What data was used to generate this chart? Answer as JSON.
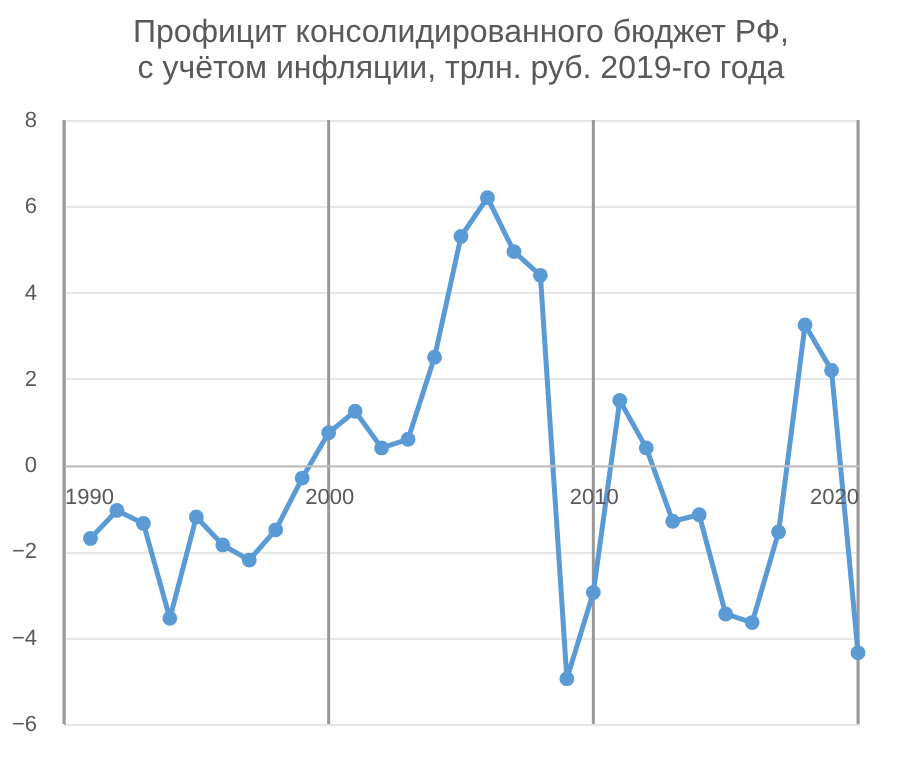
{
  "chart_data": {
    "type": "line",
    "title": "Профицит консолидированного бюджет РФ,\nс учётом инфляции, трлн. руб. 2019-го года",
    "x": [
      1991,
      1992,
      1993,
      1994,
      1995,
      1996,
      1997,
      1998,
      1999,
      2000,
      2001,
      2002,
      2003,
      2004,
      2005,
      2006,
      2007,
      2008,
      2009,
      2010,
      2011,
      2012,
      2013,
      2014,
      2015,
      2016,
      2017,
      2018,
      2019,
      2020
    ],
    "series": [
      {
        "color": "#5b9bd5",
        "values": [
          -1.7,
          -1.05,
          -1.35,
          -3.55,
          -1.2,
          -1.85,
          -2.2,
          -1.5,
          -0.3,
          0.75,
          1.25,
          0.4,
          0.6,
          2.5,
          5.3,
          6.2,
          4.95,
          4.4,
          -4.95,
          -2.95,
          1.5,
          0.4,
          -1.3,
          -1.15,
          -3.45,
          -3.65,
          -1.55,
          3.25,
          2.2,
          -4.35
        ]
      }
    ],
    "xlim": [
      1990,
      2020
    ],
    "xticks": [
      1990,
      2000,
      2010,
      2020
    ],
    "ylim": [
      -6,
      8
    ],
    "yticks": [
      -6,
      -4,
      -2,
      0,
      2,
      4,
      6,
      8
    ],
    "grid": true,
    "marker": "circle",
    "line_style": "solid"
  }
}
